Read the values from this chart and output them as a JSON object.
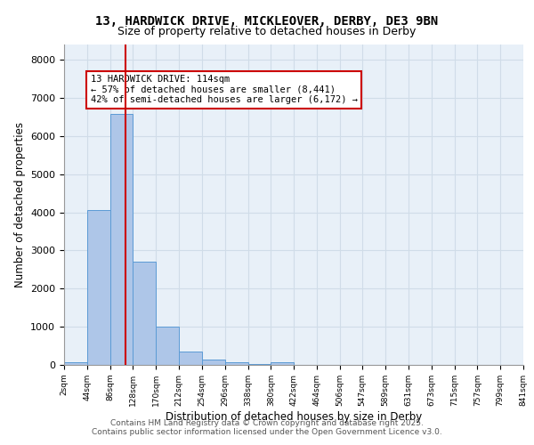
{
  "title_line1": "13, HARDWICK DRIVE, MICKLEOVER, DERBY, DE3 9BN",
  "title_line2": "Size of property relative to detached houses in Derby",
  "xlabel": "Distribution of detached houses by size in Derby",
  "ylabel": "Number of detached properties",
  "bar_edges": [
    2,
    44,
    86,
    128,
    170,
    212,
    254,
    296,
    338,
    380,
    422,
    464,
    506,
    547,
    589,
    631,
    673,
    715,
    757,
    799,
    841
  ],
  "bar_heights": [
    75,
    4050,
    6580,
    2700,
    1000,
    340,
    130,
    70,
    30,
    60,
    0,
    0,
    0,
    0,
    0,
    0,
    0,
    0,
    0,
    0
  ],
  "bar_color": "#aec6e8",
  "bar_edgecolor": "#5b9bd5",
  "vline_x": 114,
  "vline_color": "#cc0000",
  "annotation_text": "13 HARDWICK DRIVE: 114sqm\n← 57% of detached houses are smaller (8,441)\n42% of semi-detached houses are larger (6,172) →",
  "annotation_box_edgecolor": "#cc0000",
  "annotation_box_facecolor": "#ffffff",
  "ylim": [
    0,
    8400
  ],
  "yticks": [
    0,
    1000,
    2000,
    3000,
    4000,
    5000,
    6000,
    7000,
    8000
  ],
  "grid_color": "#d0dce8",
  "background_color": "#e8f0f8",
  "footer_text": "Contains HM Land Registry data © Crown copyright and database right 2025.\nContains public sector information licensed under the Open Government Licence v3.0.",
  "tick_labels": [
    "2sqm",
    "44sqm",
    "86sqm",
    "128sqm",
    "170sqm",
    "212sqm",
    "254sqm",
    "296sqm",
    "338sqm",
    "380sqm",
    "422sqm",
    "464sqm",
    "506sqm",
    "547sqm",
    "589sqm",
    "631sqm",
    "673sqm",
    "715sqm",
    "757sqm",
    "799sqm",
    "841sqm"
  ]
}
